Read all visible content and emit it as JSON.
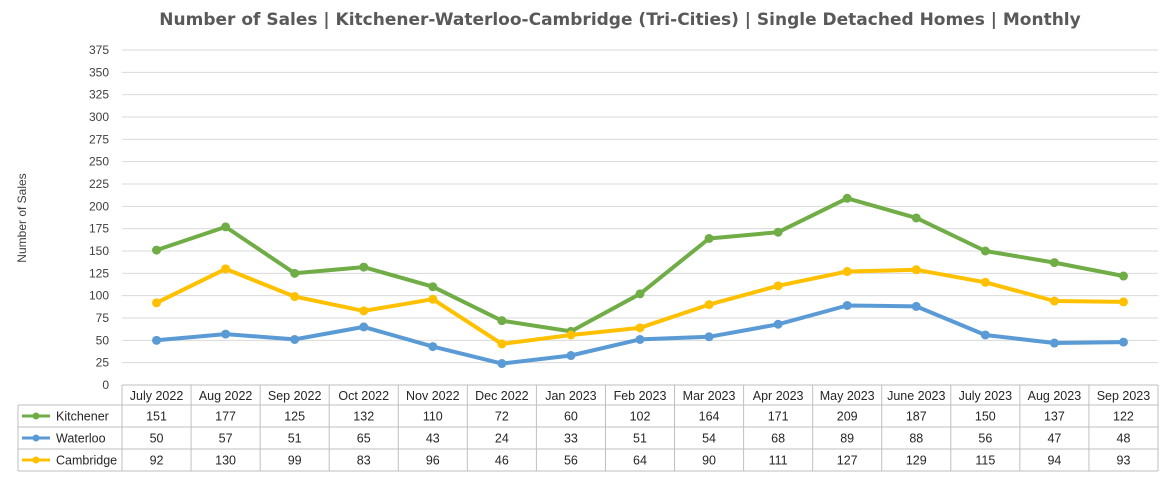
{
  "chart_data": {
    "type": "line",
    "title": "Number of Sales | Kitchener-Waterloo-Cambridge (Tri-Cities) | Single Detached Homes | Monthly",
    "xlabel": "",
    "ylabel": "Number of Sales",
    "ylim": [
      0,
      375
    ],
    "yticks": [
      0,
      25,
      50,
      75,
      100,
      125,
      150,
      175,
      200,
      225,
      250,
      275,
      300,
      325,
      350,
      375
    ],
    "grid": true,
    "legend": "data-table-left",
    "categories": [
      "July 2022",
      "Aug 2022",
      "Sep 2022",
      "Oct 2022",
      "Nov 2022",
      "Dec 2022",
      "Jan 2023",
      "Feb 2023",
      "Mar 2023",
      "Apr 2023",
      "May 2023",
      "June 2023",
      "July 2023",
      "Aug 2023",
      "Sep 2023"
    ],
    "series": [
      {
        "name": "Kitchener",
        "color": "#70AD47",
        "values": [
          151,
          177,
          125,
          132,
          110,
          72,
          60,
          102,
          164,
          171,
          209,
          187,
          150,
          137,
          122
        ]
      },
      {
        "name": "Waterloo",
        "color": "#5B9BD5",
        "values": [
          50,
          57,
          51,
          65,
          43,
          24,
          33,
          51,
          54,
          68,
          89,
          88,
          56,
          47,
          48
        ]
      },
      {
        "name": "Cambridge",
        "color": "#FFC000",
        "values": [
          92,
          130,
          99,
          83,
          96,
          46,
          56,
          64,
          90,
          111,
          127,
          129,
          115,
          94,
          93
        ]
      }
    ]
  }
}
